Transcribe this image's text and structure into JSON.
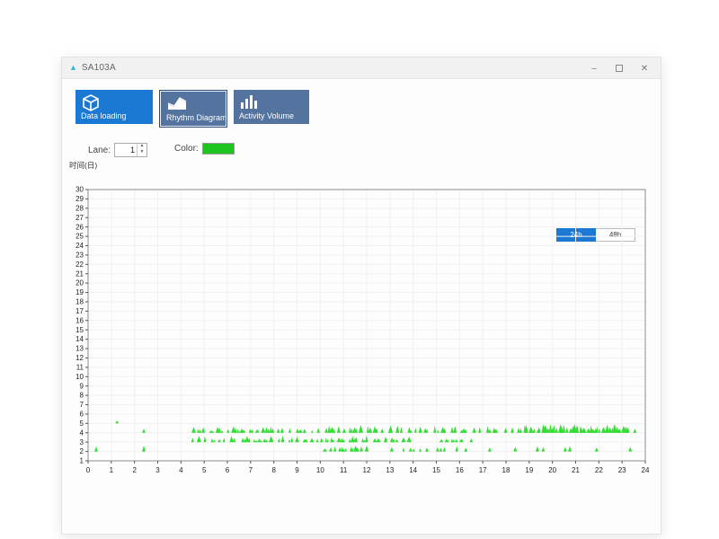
{
  "window": {
    "title": "SA103A",
    "app_icon": "▲",
    "controls": {
      "minimize_icon": "–",
      "close_icon": "✕"
    }
  },
  "toolbar": {
    "items": [
      {
        "label": "Data loading",
        "icon": "cube-icon",
        "selected": false
      },
      {
        "label": "Rhythm Diagram",
        "icon": "area-chart-icon",
        "selected": true
      },
      {
        "label": "Activity Volume",
        "icon": "bar-chart-icon",
        "selected": false
      }
    ]
  },
  "controls": {
    "lane_label": "Lane:",
    "lane_value": "1",
    "color_label": "Color:"
  },
  "toggle": {
    "options": [
      "24h",
      "48h"
    ],
    "selected": "24h"
  },
  "colors": {
    "accent": "#1b78d3",
    "steel": "#54739f",
    "sel-border": "#2e4d76",
    "swatch-green": "#1fc41f",
    "chart-green": "#33dd33",
    "icon-teal": "#35b8d6"
  },
  "chart_data": {
    "type": "scatter",
    "subtype": "actogram-activity-spikes",
    "title": "",
    "ylabel_title": "时间(日)",
    "xlabel": "",
    "xlim": [
      0,
      24
    ],
    "ylim": [
      1,
      30
    ],
    "x_tick_step": 1,
    "y_tick_step": 1,
    "grid": true,
    "legend": "none",
    "series_color": "#33dd33",
    "clusters": [
      {
        "day": 2,
        "type": "points",
        "xs": [
          0.35,
          2.4
        ],
        "h": 0.6
      },
      {
        "day": 2,
        "type": "burst",
        "start": 10.2,
        "end": 12.1,
        "n": 11,
        "hmin": 0.3,
        "hmax": 0.65,
        "seed": 7
      },
      {
        "day": 2,
        "type": "burst",
        "start": 12.9,
        "end": 16.4,
        "n": 9,
        "hmin": 0.3,
        "hmax": 0.6,
        "seed": 11
      },
      {
        "day": 2,
        "type": "points",
        "xs": [
          17.3,
          18.4,
          19.35,
          19.6,
          20.55,
          20.75,
          21.9,
          23.35
        ],
        "h": 0.5
      },
      {
        "day": 3,
        "type": "burst",
        "start": 4.4,
        "end": 8.1,
        "n": 14,
        "hmin": 0.3,
        "hmax": 0.7,
        "seed": 21
      },
      {
        "day": 3,
        "type": "burst",
        "start": 8.1,
        "end": 13.9,
        "n": 27,
        "hmin": 0.3,
        "hmax": 0.75,
        "seed": 22
      },
      {
        "day": 3,
        "type": "burst",
        "start": 15.2,
        "end": 16.1,
        "n": 5,
        "hmin": 0.3,
        "hmax": 0.6,
        "seed": 23
      },
      {
        "day": 3,
        "type": "points",
        "xs": [
          16.5
        ],
        "h": 0.45
      },
      {
        "day": 4,
        "type": "points",
        "xs": [
          2.4
        ],
        "h": 0.5
      },
      {
        "day": 4,
        "type": "burst",
        "start": 4.4,
        "end": 10.3,
        "n": 24,
        "hmin": 0.25,
        "hmax": 0.7,
        "seed": 31
      },
      {
        "day": 4,
        "type": "burst",
        "start": 10.3,
        "end": 16.4,
        "n": 27,
        "hmin": 0.3,
        "hmax": 0.9,
        "seed": 32
      },
      {
        "day": 4,
        "type": "burst",
        "start": 16.5,
        "end": 18.6,
        "n": 8,
        "hmin": 0.3,
        "hmax": 0.7,
        "seed": 33
      },
      {
        "day": 4,
        "type": "burst",
        "start": 18.75,
        "end": 23.3,
        "n": 42,
        "hmin": 0.35,
        "hmax": 1.0,
        "seed": 34
      },
      {
        "day": 4,
        "type": "points",
        "xs": [
          23.55
        ],
        "h": 0.5
      },
      {
        "day": 5,
        "type": "points",
        "xs": [
          1.25
        ],
        "h": 0.35
      }
    ]
  }
}
